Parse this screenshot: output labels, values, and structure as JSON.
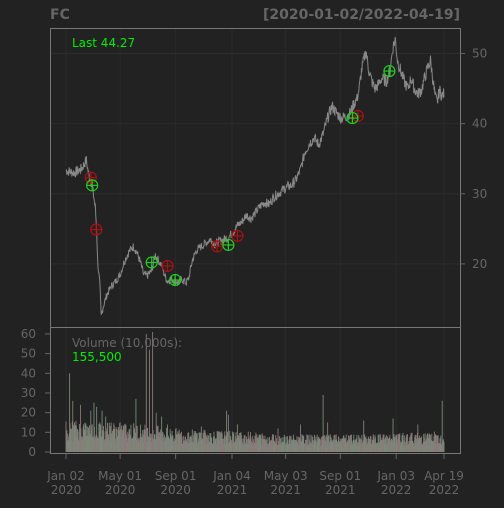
{
  "chart_data": [
    {
      "type": "line",
      "ticker": "FC",
      "date_range": "[2020-01-02/2022-04-19]",
      "last_label": "Last 44.27",
      "x_tick_labels": [
        [
          "Jan 02",
          "2020"
        ],
        [
          "May 01",
          "2020"
        ],
        [
          "Sep 01",
          "2020"
        ],
        [
          "Jan 04",
          "2021"
        ],
        [
          "May 03",
          "2021"
        ],
        [
          "Sep 01",
          "2021"
        ],
        [
          "Jan 03",
          "2022"
        ],
        [
          "Apr 19",
          "2022"
        ]
      ],
      "x_tick_days": [
        0,
        120,
        243,
        368,
        487,
        608,
        732,
        838
      ],
      "x_range_days": [
        0,
        838
      ],
      "y_ticks": [
        20,
        30,
        40,
        50
      ],
      "ylim": [
        11,
        53.5
      ],
      "grid": true,
      "colors": {
        "background": "#222222",
        "panel_border": "#777777",
        "price_line": "#888888",
        "buy": "#22cc22",
        "sell": "#aa1111",
        "text": "#666666",
        "green_text": "#00ee00",
        "volume_bar": "#777777"
      },
      "price_series": [
        {
          "day": 0,
          "close": 33.3
        },
        {
          "day": 20,
          "close": 33.0
        },
        {
          "day": 35,
          "close": 33.6
        },
        {
          "day": 45,
          "close": 34.8
        },
        {
          "day": 50,
          "close": 32.8
        },
        {
          "day": 58,
          "close": 31.2
        },
        {
          "day": 65,
          "close": 28.0
        },
        {
          "day": 68,
          "close": 24.9
        },
        {
          "day": 70,
          "close": 20.5
        },
        {
          "day": 75,
          "close": 17.0
        },
        {
          "day": 78,
          "close": 12.5
        },
        {
          "day": 82,
          "close": 13.8
        },
        {
          "day": 90,
          "close": 15.5
        },
        {
          "day": 100,
          "close": 16.8
        },
        {
          "day": 110,
          "close": 17.5
        },
        {
          "day": 120,
          "close": 18.5
        },
        {
          "day": 130,
          "close": 20.5
        },
        {
          "day": 140,
          "close": 21.8
        },
        {
          "day": 150,
          "close": 22.5
        },
        {
          "day": 158,
          "close": 21.5
        },
        {
          "day": 165,
          "close": 20.2
        },
        {
          "day": 172,
          "close": 18.5
        },
        {
          "day": 180,
          "close": 18.3
        },
        {
          "day": 190,
          "close": 19.0
        },
        {
          "day": 198,
          "close": 21.3
        },
        {
          "day": 205,
          "close": 20.5
        },
        {
          "day": 212,
          "close": 19.8
        },
        {
          "day": 218,
          "close": 18.5
        },
        {
          "day": 225,
          "close": 17.5
        },
        {
          "day": 232,
          "close": 17.9
        },
        {
          "day": 240,
          "close": 17.6
        },
        {
          "day": 250,
          "close": 17.4
        },
        {
          "day": 258,
          "close": 17.8
        },
        {
          "day": 266,
          "close": 17.3
        },
        {
          "day": 272,
          "close": 17.9
        },
        {
          "day": 280,
          "close": 20.5
        },
        {
          "day": 290,
          "close": 22.0
        },
        {
          "day": 300,
          "close": 22.5
        },
        {
          "day": 310,
          "close": 23.0
        },
        {
          "day": 320,
          "close": 23.5
        },
        {
          "day": 330,
          "close": 22.8
        },
        {
          "day": 340,
          "close": 23.2
        },
        {
          "day": 350,
          "close": 23.5
        },
        {
          "day": 360,
          "close": 23.8
        },
        {
          "day": 370,
          "close": 24.5
        },
        {
          "day": 380,
          "close": 25.5
        },
        {
          "day": 390,
          "close": 26.0
        },
        {
          "day": 400,
          "close": 27.0
        },
        {
          "day": 410,
          "close": 26.5
        },
        {
          "day": 420,
          "close": 27.3
        },
        {
          "day": 430,
          "close": 28.2
        },
        {
          "day": 440,
          "close": 28.8
        },
        {
          "day": 450,
          "close": 28.5
        },
        {
          "day": 460,
          "close": 29.5
        },
        {
          "day": 470,
          "close": 30.0
        },
        {
          "day": 480,
          "close": 30.5
        },
        {
          "day": 490,
          "close": 31.0
        },
        {
          "day": 500,
          "close": 31.2
        },
        {
          "day": 510,
          "close": 32.0
        },
        {
          "day": 520,
          "close": 33.5
        },
        {
          "day": 530,
          "close": 36.0
        },
        {
          "day": 540,
          "close": 37.2
        },
        {
          "day": 550,
          "close": 38.0
        },
        {
          "day": 560,
          "close": 37.0
        },
        {
          "day": 570,
          "close": 38.5
        },
        {
          "day": 580,
          "close": 40.8
        },
        {
          "day": 590,
          "close": 42.5
        },
        {
          "day": 600,
          "close": 41.5
        },
        {
          "day": 610,
          "close": 40.8
        },
        {
          "day": 620,
          "close": 41.0
        },
        {
          "day": 630,
          "close": 41.5
        },
        {
          "day": 638,
          "close": 42.8
        },
        {
          "day": 645,
          "close": 43.5
        },
        {
          "day": 650,
          "close": 45.0
        },
        {
          "day": 655,
          "close": 47.5
        },
        {
          "day": 660,
          "close": 49.0
        },
        {
          "day": 665,
          "close": 50.5
        },
        {
          "day": 670,
          "close": 48.0
        },
        {
          "day": 678,
          "close": 46.0
        },
        {
          "day": 685,
          "close": 45.0
        },
        {
          "day": 692,
          "close": 45.5
        },
        {
          "day": 700,
          "close": 46.5
        },
        {
          "day": 710,
          "close": 46.0
        },
        {
          "day": 718,
          "close": 47.5
        },
        {
          "day": 725,
          "close": 51.0
        },
        {
          "day": 730,
          "close": 52.0
        },
        {
          "day": 735,
          "close": 49.0
        },
        {
          "day": 742,
          "close": 47.5
        },
        {
          "day": 750,
          "close": 46.0
        },
        {
          "day": 758,
          "close": 45.0
        },
        {
          "day": 765,
          "close": 46.5
        },
        {
          "day": 772,
          "close": 45.0
        },
        {
          "day": 780,
          "close": 44.2
        },
        {
          "day": 788,
          "close": 44.8
        },
        {
          "day": 795,
          "close": 46.5
        },
        {
          "day": 802,
          "close": 48.0
        },
        {
          "day": 808,
          "close": 49.0
        },
        {
          "day": 813,
          "close": 46.5
        },
        {
          "day": 818,
          "close": 44.0
        },
        {
          "day": 823,
          "close": 43.0
        },
        {
          "day": 828,
          "close": 44.8
        },
        {
          "day": 833,
          "close": 44.0
        },
        {
          "day": 838,
          "close": 44.27
        }
      ],
      "buy_signals": [
        {
          "day": 58,
          "price": 31.2
        },
        {
          "day": 190,
          "price": 20.2
        },
        {
          "day": 242,
          "price": 17.7
        },
        {
          "day": 360,
          "price": 22.7
        },
        {
          "day": 635,
          "price": 40.8
        },
        {
          "day": 717,
          "price": 47.5
        }
      ],
      "sell_signals": [
        {
          "day": 55,
          "price": 32.3
        },
        {
          "day": 67,
          "price": 24.9
        },
        {
          "day": 225,
          "price": 19.7
        },
        {
          "day": 335,
          "price": 22.5
        },
        {
          "day": 380,
          "price": 24.0
        },
        {
          "day": 647,
          "price": 41.1
        }
      ],
      "volume_label": "Volume (10,000s):",
      "volume_last": "155,500",
      "volume_y_ticks": [
        0,
        10,
        20,
        30,
        40,
        50,
        60
      ],
      "volume_ylim": [
        0,
        62
      ],
      "volume_spikes": [
        {
          "day": 8,
          "value": 40
        },
        {
          "day": 15,
          "value": 26
        },
        {
          "day": 32,
          "value": 24
        },
        {
          "day": 55,
          "value": 21
        },
        {
          "day": 62,
          "value": 25
        },
        {
          "day": 68,
          "value": 23
        },
        {
          "day": 80,
          "value": 21
        },
        {
          "day": 88,
          "value": 18
        },
        {
          "day": 100,
          "value": 15
        },
        {
          "day": 130,
          "value": 14
        },
        {
          "day": 155,
          "value": 27
        },
        {
          "day": 178,
          "value": 60
        },
        {
          "day": 185,
          "value": 52
        },
        {
          "day": 192,
          "value": 61
        },
        {
          "day": 200,
          "value": 20
        },
        {
          "day": 212,
          "value": 18
        },
        {
          "day": 225,
          "value": 14
        },
        {
          "day": 300,
          "value": 13
        },
        {
          "day": 356,
          "value": 21
        },
        {
          "day": 360,
          "value": 19
        },
        {
          "day": 380,
          "value": 14
        },
        {
          "day": 470,
          "value": 12
        },
        {
          "day": 520,
          "value": 14
        },
        {
          "day": 570,
          "value": 29
        },
        {
          "day": 580,
          "value": 15
        },
        {
          "day": 660,
          "value": 16
        },
        {
          "day": 725,
          "value": 17
        },
        {
          "day": 780,
          "value": 14
        },
        {
          "day": 834,
          "value": 26
        }
      ],
      "volume_baseline": [
        {
          "day": 0,
          "value": 11
        },
        {
          "day": 150,
          "value": 10
        },
        {
          "day": 250,
          "value": 8
        },
        {
          "day": 400,
          "value": 7
        },
        {
          "day": 500,
          "value": 6
        },
        {
          "day": 650,
          "value": 6
        },
        {
          "day": 838,
          "value": 7
        }
      ]
    }
  ]
}
